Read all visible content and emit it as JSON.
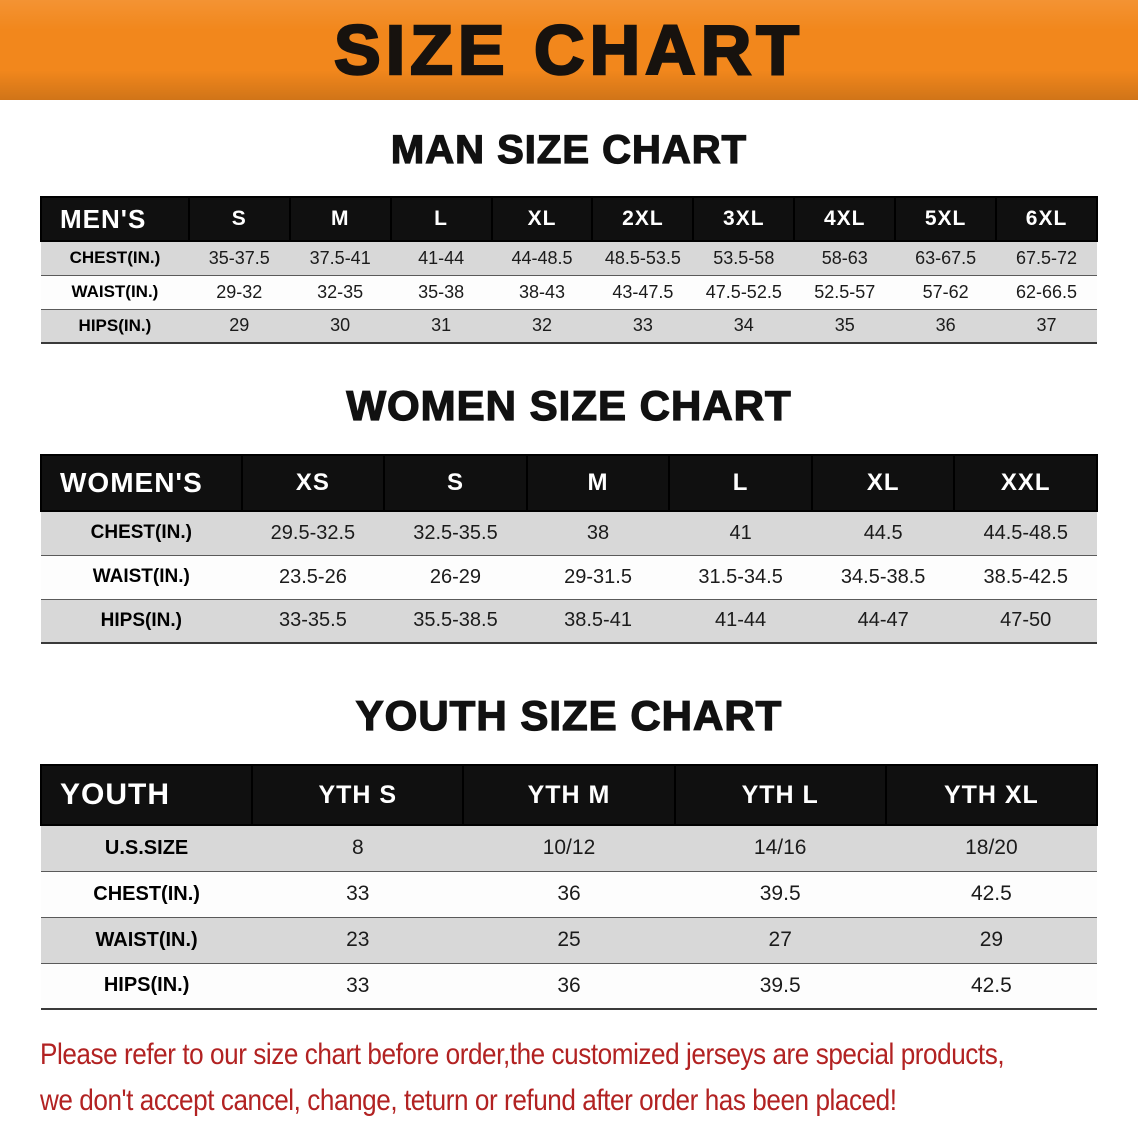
{
  "banner": {
    "title": "SIZE CHART"
  },
  "colors": {
    "banner_bg": "#F2871C",
    "banner_text": "#17120E",
    "table_header_bg": "#101010",
    "table_header_text": "#FFFFFF",
    "row_shade": "#D8D8D8",
    "row_light": "#FDFDFD",
    "footer_text": "#B22222"
  },
  "chart_data": [
    {
      "type": "table",
      "title": "MAN SIZE CHART",
      "header": [
        "MEN'S",
        "S",
        "M",
        "L",
        "XL",
        "2XL",
        "3XL",
        "4XL",
        "5XL",
        "6XL"
      ],
      "rows": [
        [
          "CHEST(IN.)",
          "35-37.5",
          "37.5-41",
          "41-44",
          "44-48.5",
          "48.5-53.5",
          "53.5-58",
          "58-63",
          "63-67.5",
          "67.5-72"
        ],
        [
          "WAIST(IN.)",
          "29-32",
          "32-35",
          "35-38",
          "38-43",
          "43-47.5",
          "47.5-52.5",
          "52.5-57",
          "57-62",
          "62-66.5"
        ],
        [
          "HIPS(IN.)",
          "29",
          "30",
          "31",
          "32",
          "33",
          "34",
          "35",
          "36",
          "37"
        ]
      ]
    },
    {
      "type": "table",
      "title": "WOMEN SIZE CHART",
      "header": [
        "WOMEN'S",
        "XS",
        "S",
        "M",
        "L",
        "XL",
        "XXL"
      ],
      "rows": [
        [
          "CHEST(IN.)",
          "29.5-32.5",
          "32.5-35.5",
          "38",
          "41",
          "44.5",
          "44.5-48.5"
        ],
        [
          "WAIST(IN.)",
          "23.5-26",
          "26-29",
          "29-31.5",
          "31.5-34.5",
          "34.5-38.5",
          "38.5-42.5"
        ],
        [
          "HIPS(IN.)",
          "33-35.5",
          "35.5-38.5",
          "38.5-41",
          "41-44",
          "44-47",
          "47-50"
        ]
      ]
    },
    {
      "type": "table",
      "title": "YOUTH SIZE CHART",
      "header": [
        "YOUTH",
        "YTH S",
        "YTH M",
        "YTH L",
        "YTH XL"
      ],
      "rows": [
        [
          "U.S.SIZE",
          "8",
          "10/12",
          "14/16",
          "18/20"
        ],
        [
          "CHEST(IN.)",
          "33",
          "36",
          "39.5",
          "42.5"
        ],
        [
          "WAIST(IN.)",
          "23",
          "25",
          "27",
          "29"
        ],
        [
          "HIPS(IN.)",
          "33",
          "36",
          "39.5",
          "42.5"
        ]
      ]
    }
  ],
  "footer": {
    "line1": "Please refer to our size chart before order,the customized jerseys are special products,",
    "line2": "we don't accept cancel, change, teturn or refund after order has been placed!"
  }
}
